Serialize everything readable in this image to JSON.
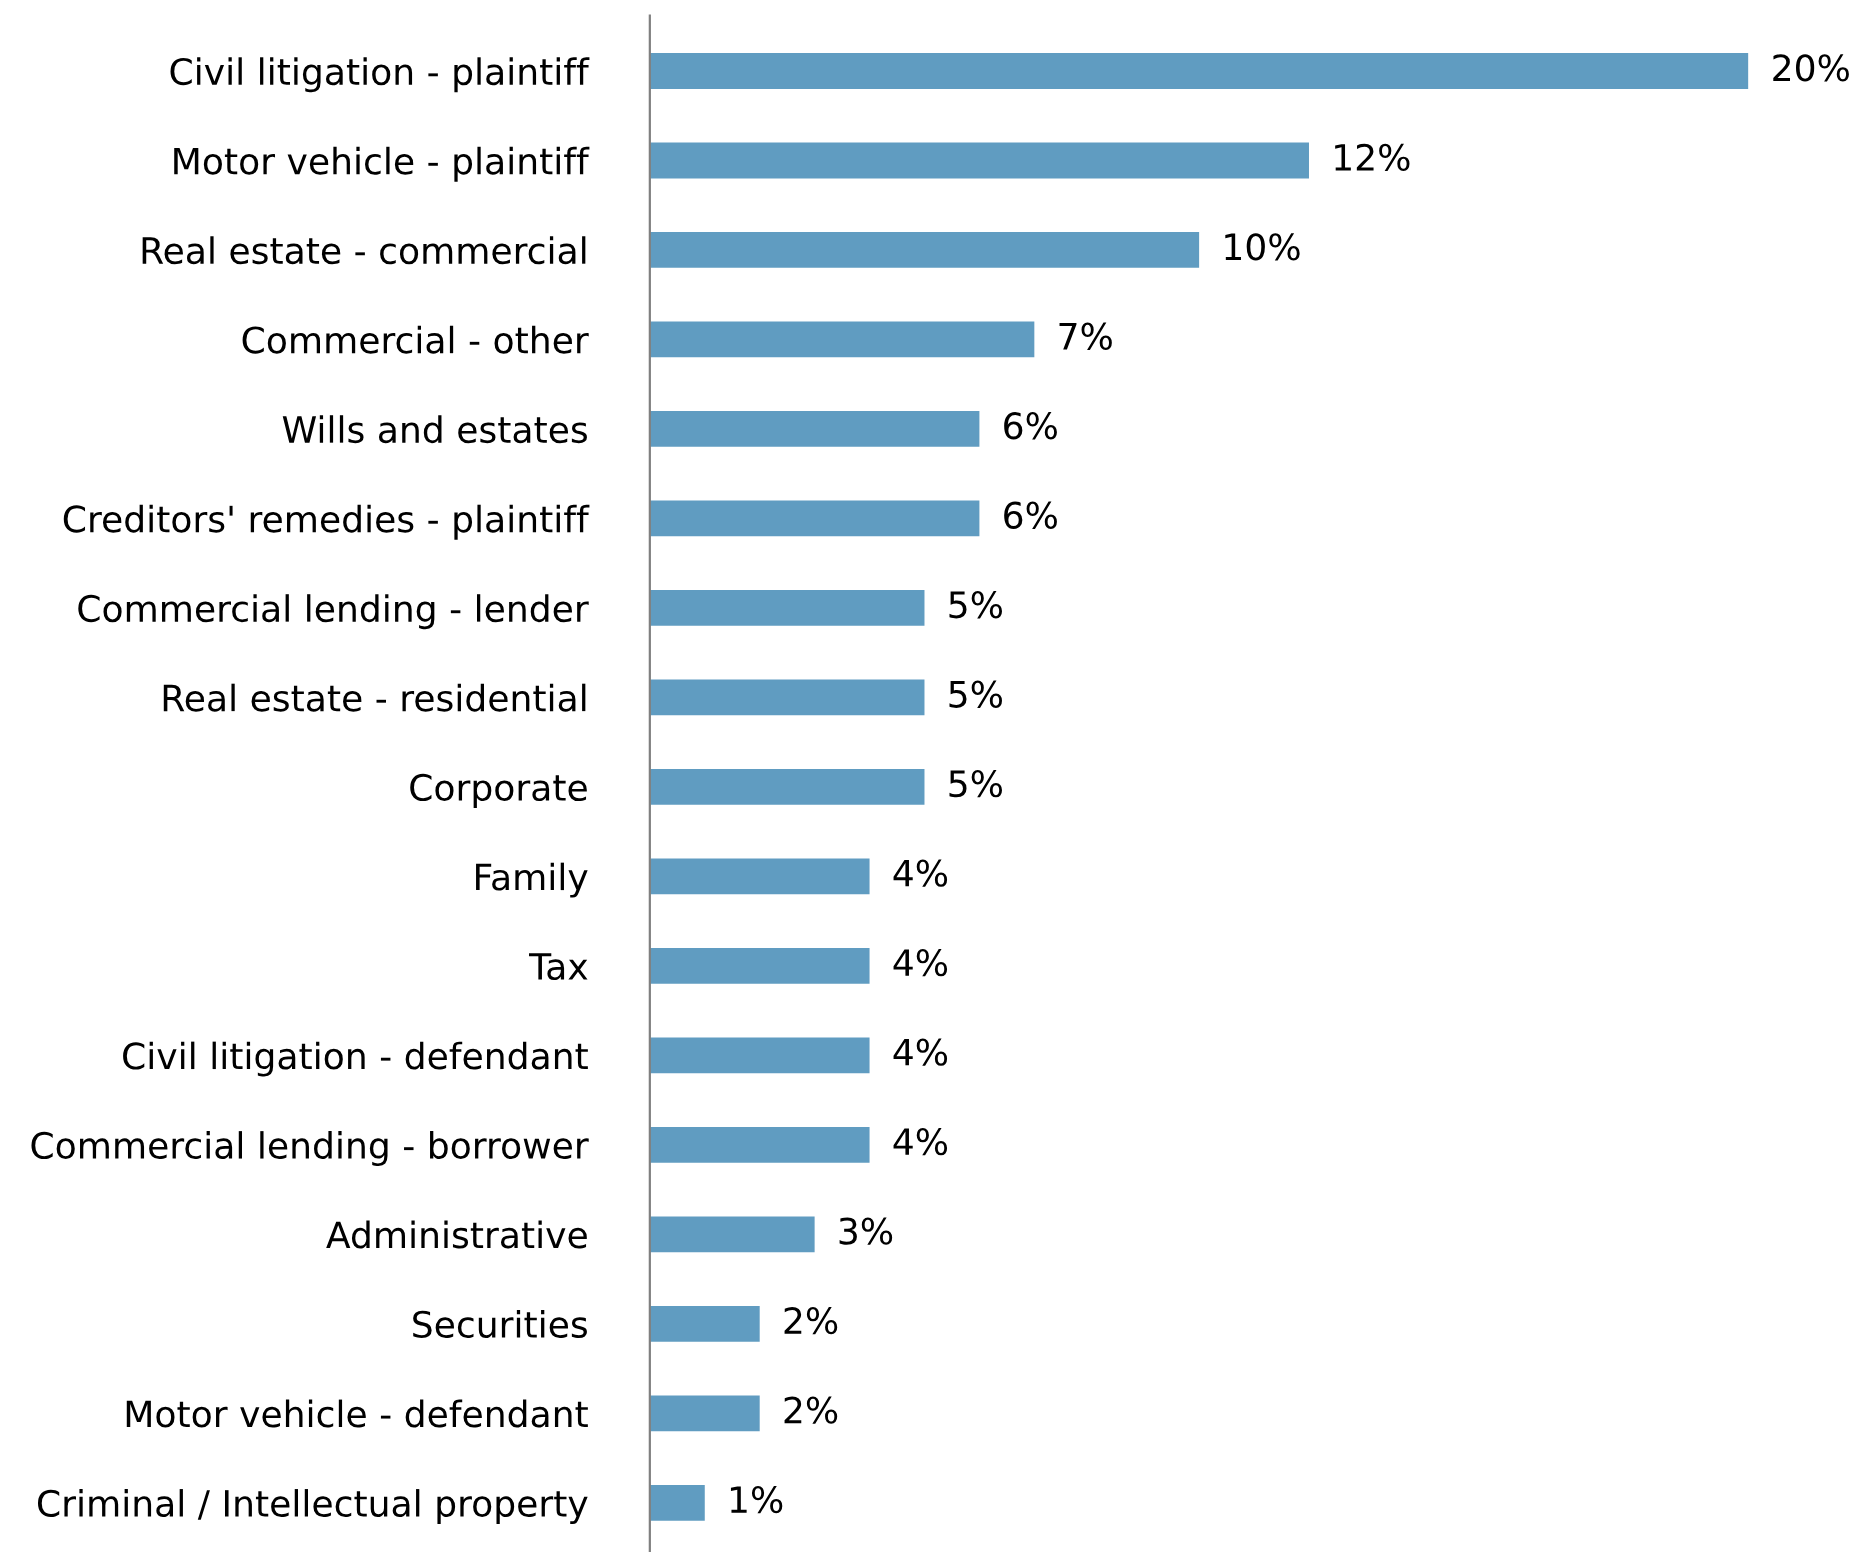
{
  "chart_data": {
    "type": "bar",
    "orientation": "horizontal",
    "categories": [
      "Civil litigation - plaintiff",
      "Motor vehicle - plaintiff",
      "Real estate - commercial",
      "Commercial - other",
      "Wills and estates",
      "Creditors' remedies - plaintiff",
      "Commercial lending - lender",
      "Real estate - residential",
      "Corporate",
      "Family",
      "Tax",
      "Civil litigation - defendant",
      "Commercial lending - borrower",
      "Administrative",
      "Securities",
      "Motor vehicle - defendant",
      "Criminal / Intellectual property"
    ],
    "values": [
      20,
      12,
      10,
      7,
      6,
      6,
      5,
      5,
      5,
      4,
      4,
      4,
      4,
      3,
      2,
      2,
      1
    ],
    "value_labels": [
      "20%",
      "12%",
      "10%",
      "7%",
      "6%",
      "6%",
      "5%",
      "5%",
      "5%",
      "4%",
      "4%",
      "4%",
      "4%",
      "3%",
      "2%",
      "2%",
      "1%"
    ],
    "color": "#609cc1",
    "tick_labels": "y",
    "grid": false,
    "legend": false
  }
}
